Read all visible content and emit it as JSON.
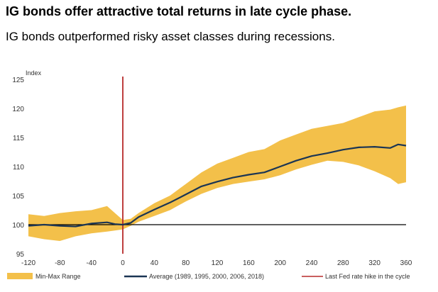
{
  "header": {
    "title": "IG bonds offer attractive total returns in late cycle phase.",
    "subtitle": "IG bonds outperformed risky asset classes during recessions."
  },
  "colors": {
    "range": "#F3C04A",
    "average": "#1B3554",
    "fed_line": "#B72A2A",
    "baseline": "#000000"
  },
  "chart_data": {
    "type": "area",
    "ylabel": "Index",
    "xlim": [
      -120,
      360
    ],
    "ylim": [
      95,
      125
    ],
    "x_ticks": [
      "-120",
      "-80",
      "-40",
      "0",
      "40",
      "80",
      "120",
      "160",
      "200",
      "240",
      "280",
      "320",
      "360"
    ],
    "y_ticks": [
      "125",
      "120",
      "115",
      "110",
      "105",
      "100",
      "95"
    ],
    "grid": false,
    "legend_position": "bottom",
    "baseline": 100,
    "vertical_marker": {
      "x": 0,
      "name": "Last Fed rate hike in the cycle"
    },
    "x": [
      -120,
      -100,
      -80,
      -60,
      -40,
      -20,
      -10,
      0,
      10,
      20,
      40,
      60,
      80,
      100,
      120,
      140,
      160,
      180,
      200,
      220,
      240,
      260,
      280,
      300,
      320,
      340,
      350,
      360
    ],
    "series": [
      {
        "name": "Min-Max Range",
        "kind": "band",
        "lower": [
          98.0,
          97.5,
          97.2,
          98.0,
          98.5,
          98.8,
          99.0,
          99.2,
          99.8,
          100.5,
          101.5,
          102.5,
          104.0,
          105.3,
          106.3,
          107.0,
          107.4,
          107.8,
          108.5,
          109.5,
          110.3,
          111.0,
          110.8,
          110.2,
          109.2,
          108.0,
          107.0,
          107.3
        ],
        "upper": [
          101.8,
          101.5,
          102.0,
          102.3,
          102.5,
          103.2,
          102.0,
          100.8,
          101.0,
          102.0,
          103.7,
          105.0,
          107.0,
          109.0,
          110.5,
          111.5,
          112.5,
          113.0,
          114.5,
          115.5,
          116.5,
          117.0,
          117.5,
          118.5,
          119.5,
          119.8,
          120.2,
          120.5
        ]
      },
      {
        "name": "Average (1989, 1995, 2000, 2006, 2018)",
        "kind": "line",
        "values": [
          99.8,
          100.0,
          99.8,
          99.7,
          100.2,
          100.4,
          100.1,
          100.0,
          100.3,
          101.3,
          102.6,
          103.8,
          105.2,
          106.6,
          107.4,
          108.1,
          108.6,
          109.0,
          110.0,
          111.0,
          111.8,
          112.3,
          112.9,
          113.3,
          113.4,
          113.2,
          113.8,
          113.6
        ]
      }
    ]
  }
}
